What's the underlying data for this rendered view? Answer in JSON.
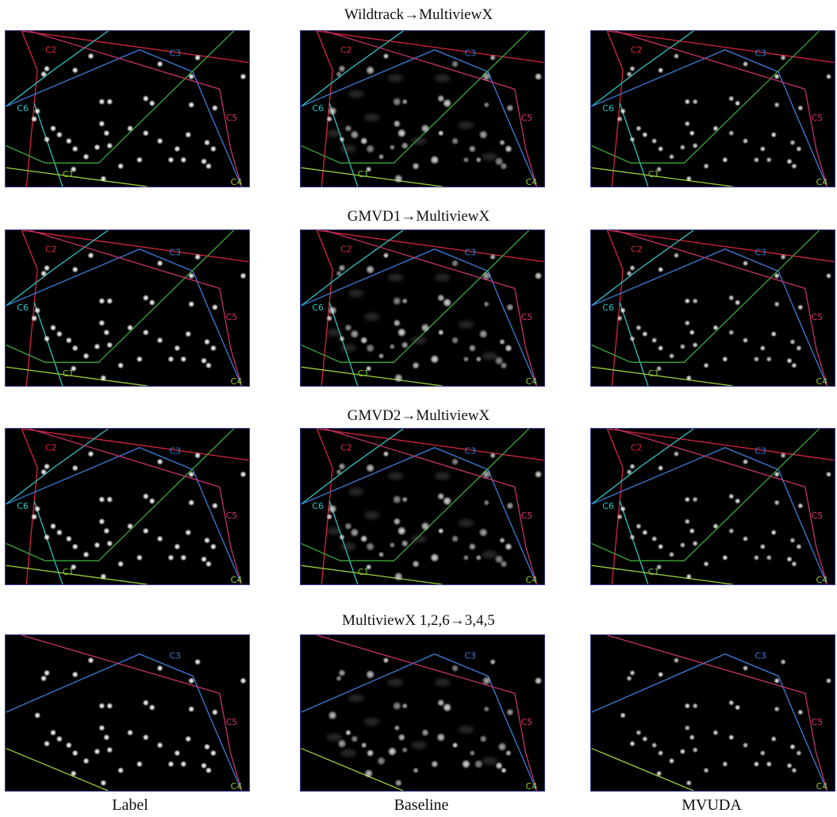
{
  "rows": [
    {
      "title": "Wildtrack→MultiviewX",
      "mode": "full"
    },
    {
      "title": "GMVD1→MultiviewX",
      "mode": "full"
    },
    {
      "title": "GMVD2→MultiviewX",
      "mode": "full"
    },
    {
      "title": "MultiviewX  1,2,6→3,4,5",
      "mode": "partial"
    }
  ],
  "columns": [
    {
      "label": "Label",
      "variant": "label"
    },
    {
      "label": "Baseline",
      "variant": "baseline"
    },
    {
      "label": "MVUDA",
      "variant": "mvuda"
    }
  ],
  "camera_labels": {
    "c1": {
      "text": "C1",
      "color": "#7ecb3a"
    },
    "c2": {
      "text": "C2",
      "color": "#e0283c"
    },
    "c3": {
      "text": "C3",
      "color": "#3a7fd8"
    },
    "c4": {
      "text": "C4",
      "color": "#9ad03a"
    },
    "c5": {
      "text": "C5",
      "color": "#d8336c"
    },
    "c6": {
      "text": "C6",
      "color": "#2ec8c8"
    }
  }
}
